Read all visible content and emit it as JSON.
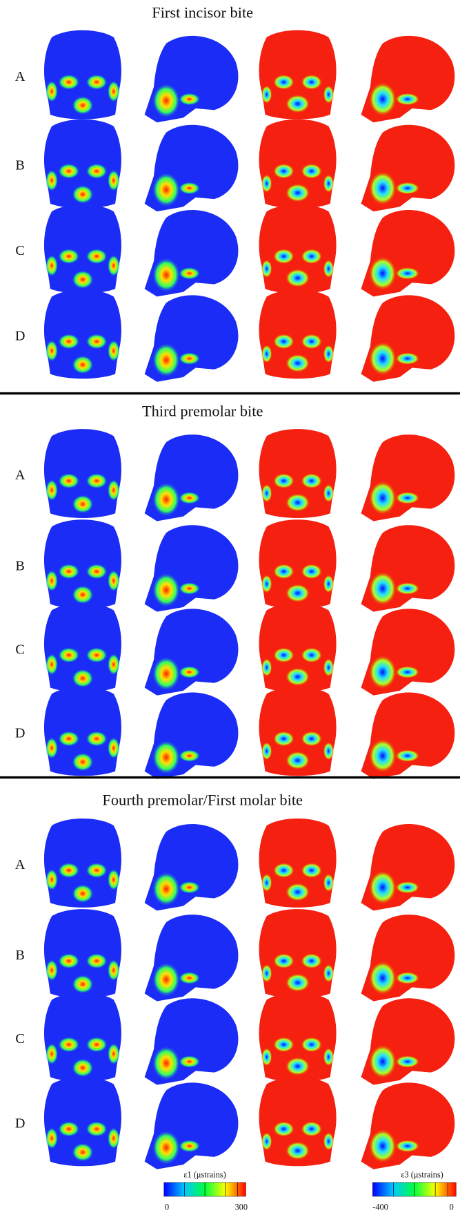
{
  "figure": {
    "sections": [
      {
        "title": "First incisor bite",
        "rows": [
          "A",
          "B",
          "C",
          "D"
        ]
      },
      {
        "title": "Third premolar bite",
        "rows": [
          "A",
          "B",
          "C",
          "D"
        ]
      },
      {
        "title": "Fourth premolar/First molar bite",
        "rows": [
          "A",
          "B",
          "C",
          "D"
        ]
      }
    ],
    "colorbars": [
      {
        "label": "ε1 (μstrains)",
        "ticks": [
          0,
          300
        ]
      },
      {
        "label": "ε3 (μstrains)",
        "ticks": [
          -400,
          0
        ]
      }
    ]
  }
}
